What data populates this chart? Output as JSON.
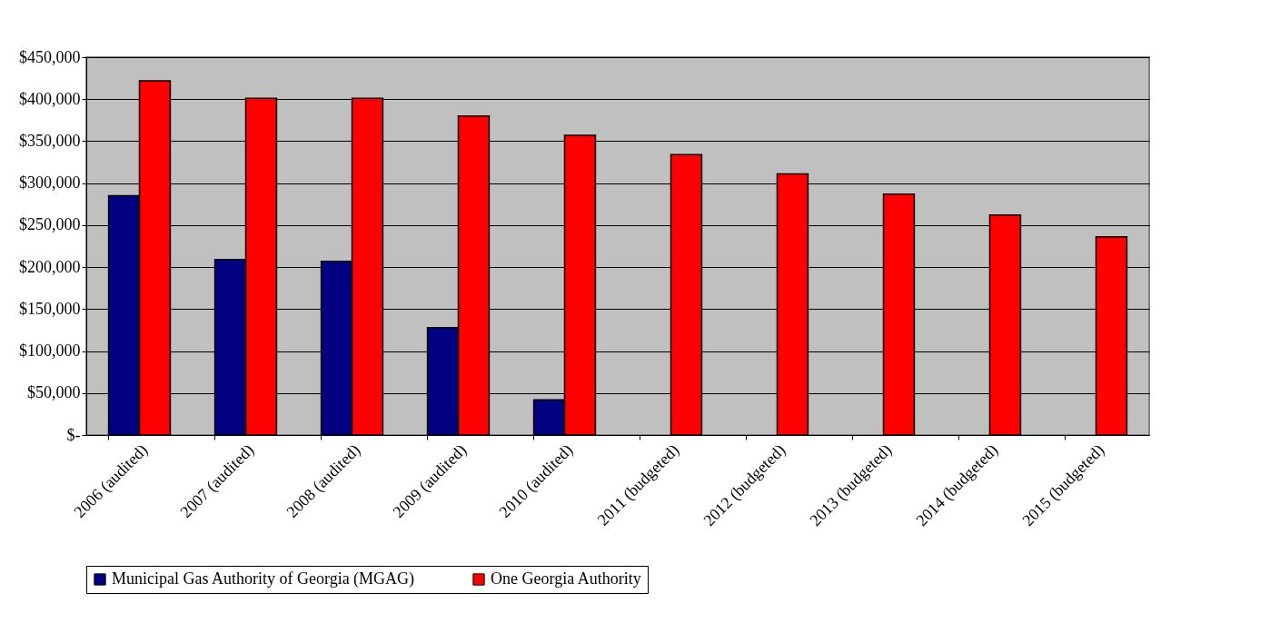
{
  "chart_data": {
    "type": "bar",
    "categories": [
      "2006 (audited)",
      "2007 (audited)",
      "2008 (audited)",
      "2009 (audited)",
      "2010 (audited)",
      "2011 (budgeted)",
      "2012 (budgeted)",
      "2013 (budgeted)",
      "2014 (budgeted)",
      "2015 (budgeted)"
    ],
    "series": [
      {
        "name": "Municipal Gas Authority of Georgia (MGAG)",
        "color": "#000080",
        "values": [
          285000,
          209000,
          207000,
          128000,
          42000,
          null,
          null,
          null,
          null,
          null
        ]
      },
      {
        "name": "One Georgia Authority",
        "color": "#ff0000",
        "values": [
          422000,
          401000,
          401000,
          380000,
          357000,
          334000,
          311000,
          287000,
          262000,
          236000
        ]
      }
    ],
    "ylim": [
      0,
      450000
    ],
    "yticks": [
      {
        "value": 0,
        "label": "$-"
      },
      {
        "value": 50000,
        "label": "$50,000"
      },
      {
        "value": 100000,
        "label": "$100,000"
      },
      {
        "value": 150000,
        "label": "$150,000"
      },
      {
        "value": 200000,
        "label": "$200,000"
      },
      {
        "value": 250000,
        "label": "$250,000"
      },
      {
        "value": 300000,
        "label": "$300,000"
      },
      {
        "value": 350000,
        "label": "$350,000"
      },
      {
        "value": 400000,
        "label": "$400,000"
      },
      {
        "value": 450000,
        "label": "$450,000"
      }
    ],
    "grid": "y",
    "legend": "bottom"
  }
}
